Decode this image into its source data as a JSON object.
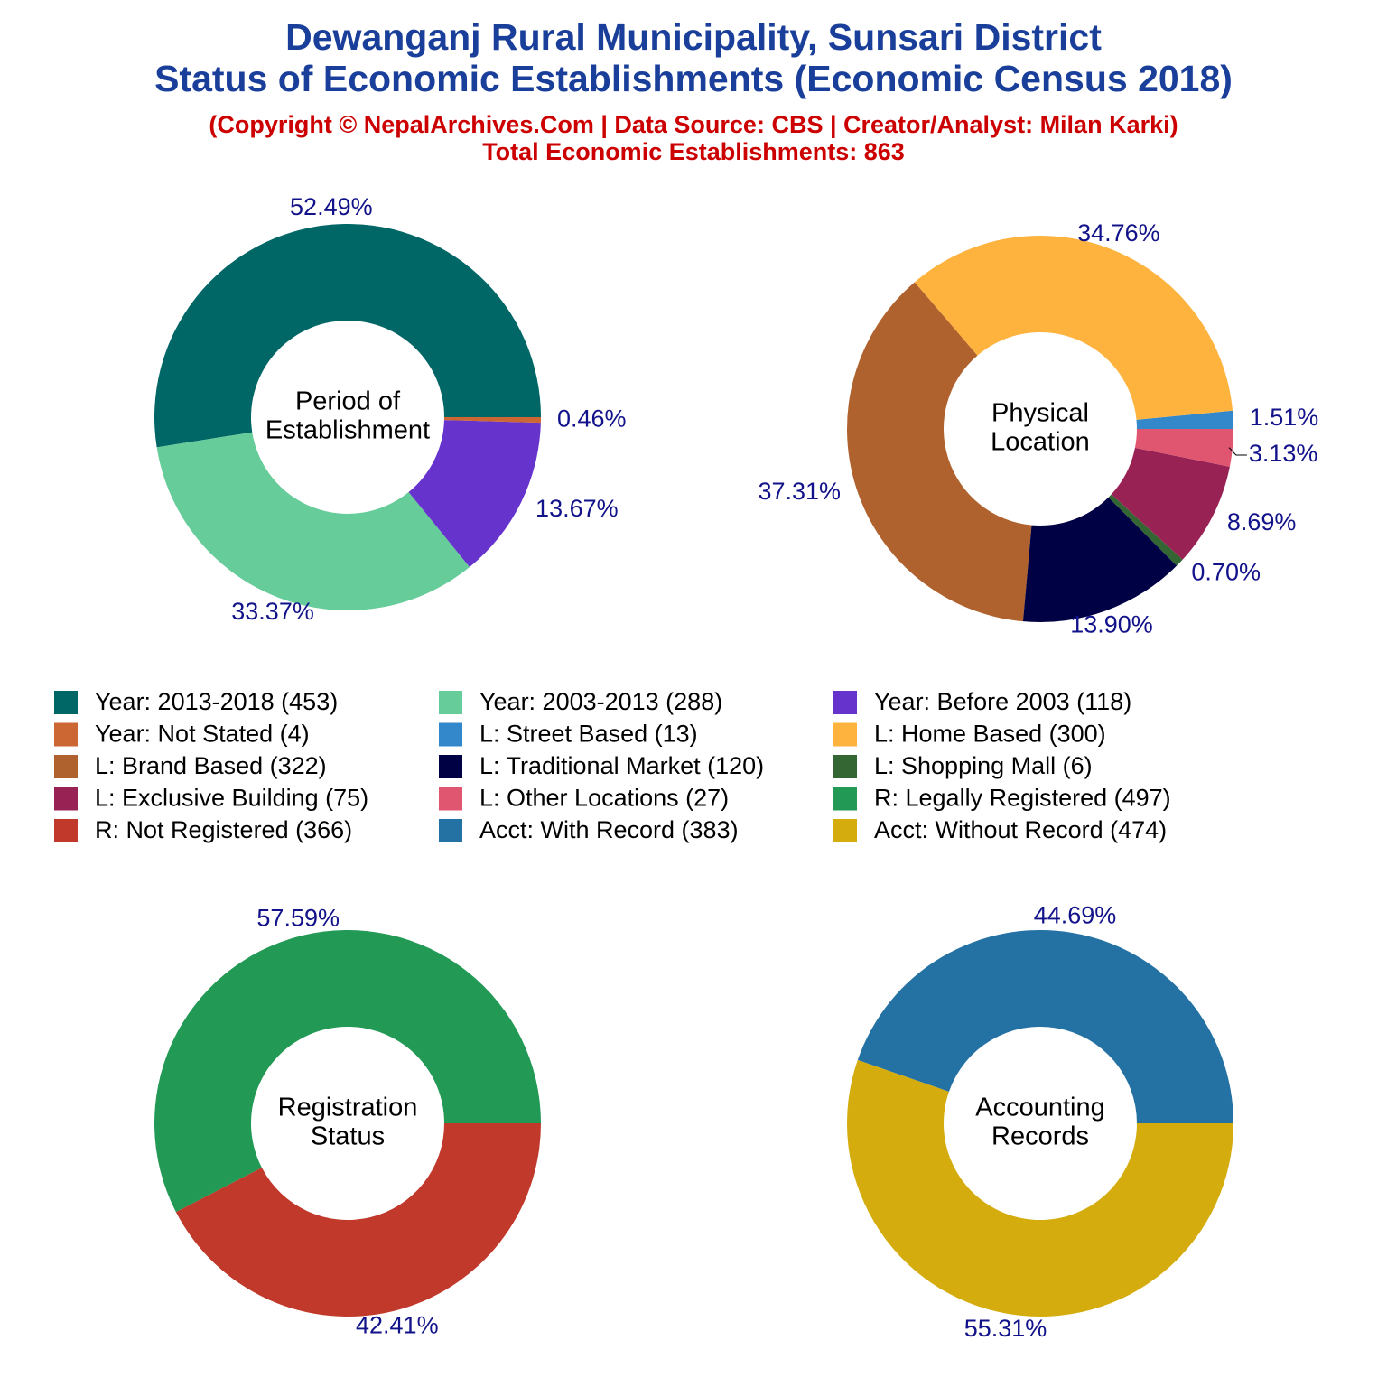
{
  "title": [
    "Dewanganj Rural Municipality, Sunsari District",
    "Status of Economic Establishments (Economic Census 2018)"
  ],
  "subtitle": [
    "(Copyright © NepalArchives.Com | Data Source: CBS | Creator/Analyst: Milan Karki)",
    "Total Economic Establishments: 863"
  ],
  "chart_data": [
    {
      "type": "donut",
      "center_label": [
        "Period of",
        "Establishment"
      ],
      "categories": [
        "Year: 2013-2018 (453)",
        "Year: 2003-2013 (288)",
        "Year: Before 2003 (118)",
        "Year: Not Stated (4)"
      ],
      "values": [
        52.49,
        33.37,
        13.67,
        0.46
      ],
      "value_labels": [
        "52.49%",
        "33.37%",
        "13.67%",
        "0.46%"
      ],
      "colors": [
        "#006666",
        "#66cc99",
        "#6633cc",
        "#cc6633"
      ]
    },
    {
      "type": "donut",
      "center_label": [
        "Physical",
        "Location"
      ],
      "categories": [
        "L: Street Based (13)",
        "L: Home Based (300)",
        "L: Brand Based (322)",
        "L: Traditional Market (120)",
        "L: Shopping Mall (6)",
        "L: Exclusive Building (75)",
        "L: Other Locations (27)"
      ],
      "values": [
        1.51,
        34.76,
        37.31,
        13.9,
        0.7,
        8.69,
        3.13
      ],
      "value_labels": [
        "1.51%",
        "34.76%",
        "37.31%",
        "13.90%",
        "0.70%",
        "8.69%",
        "3.13%"
      ],
      "colors": [
        "#3388cc",
        "#ffb33f",
        "#b0622e",
        "#000044",
        "#336633",
        "#992255",
        "#e05570"
      ]
    },
    {
      "type": "donut",
      "center_label": [
        "Registration",
        "Status"
      ],
      "categories": [
        "R: Legally Registered (497)",
        "R: Not Registered (366)"
      ],
      "values": [
        57.59,
        42.41
      ],
      "value_labels": [
        "57.59%",
        "42.41%"
      ],
      "colors": [
        "#229955",
        "#c0392b"
      ]
    },
    {
      "type": "donut",
      "center_label": [
        "Accounting",
        "Records"
      ],
      "categories": [
        "Acct: With Record (383)",
        "Acct: Without Record (474)"
      ],
      "values": [
        44.69,
        55.31
      ],
      "value_labels": [
        "44.69%",
        "55.31%"
      ],
      "colors": [
        "#2471a3",
        "#d4ac0d"
      ]
    }
  ]
}
